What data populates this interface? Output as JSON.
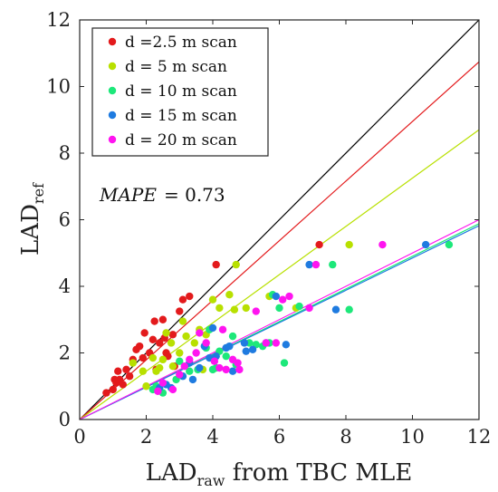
{
  "chart_data": {
    "type": "scatter",
    "xlabel_main": "LAD",
    "xlabel_sub": "raw",
    "xlabel_rest": " from TBC MLE",
    "ylabel_main": "LAD",
    "ylabel_sub": "ref",
    "xlim": [
      0,
      12
    ],
    "ylim": [
      0,
      12
    ],
    "xticks": [
      "0",
      "2",
      "4",
      "6",
      "8",
      "10",
      "12"
    ],
    "yticks": [
      "0",
      "2",
      "4",
      "6",
      "8",
      "10",
      "12"
    ],
    "grid": false,
    "legend_position": "top-left",
    "annotation_label": "MAPE",
    "annotation_value": "= 0.73",
    "reference_line": {
      "slope": 1.0,
      "color": "#000000"
    },
    "series": [
      {
        "name": "d =2.5 m scan",
        "color": "#e31a1c",
        "fit_slope": 0.895,
        "points": [
          [
            0.8,
            0.8
          ],
          [
            1.0,
            0.9
          ],
          [
            1.1,
            1.1
          ],
          [
            1.2,
            1.2
          ],
          [
            1.15,
            1.45
          ],
          [
            1.3,
            1.05
          ],
          [
            1.4,
            1.5
          ],
          [
            1.5,
            1.3
          ],
          [
            1.6,
            1.8
          ],
          [
            1.7,
            2.1
          ],
          [
            1.8,
            2.2
          ],
          [
            1.9,
            1.85
          ],
          [
            1.95,
            2.6
          ],
          [
            2.1,
            2.0
          ],
          [
            2.2,
            2.4
          ],
          [
            2.25,
            2.95
          ],
          [
            2.4,
            2.3
          ],
          [
            2.5,
            3.0
          ],
          [
            2.55,
            2.45
          ],
          [
            2.6,
            2.0
          ],
          [
            2.65,
            1.9
          ],
          [
            2.8,
            2.55
          ],
          [
            2.85,
            1.6
          ],
          [
            3.0,
            3.25
          ],
          [
            3.1,
            3.6
          ],
          [
            3.3,
            3.7
          ],
          [
            4.1,
            4.65
          ],
          [
            7.2,
            5.25
          ],
          [
            2.3,
            1.5
          ],
          [
            1.05,
            1.2
          ]
        ]
      },
      {
        "name": "d = 5 m scan",
        "color": "#b8e000",
        "fit_slope": 0.725,
        "points": [
          [
            1.6,
            1.7
          ],
          [
            1.9,
            1.45
          ],
          [
            2.2,
            1.85
          ],
          [
            2.3,
            1.45
          ],
          [
            2.4,
            1.55
          ],
          [
            2.5,
            1.8
          ],
          [
            2.6,
            2.6
          ],
          [
            2.75,
            2.3
          ],
          [
            2.8,
            1.6
          ],
          [
            3.0,
            2.0
          ],
          [
            3.1,
            2.95
          ],
          [
            3.2,
            2.5
          ],
          [
            3.45,
            2.3
          ],
          [
            3.6,
            2.7
          ],
          [
            3.8,
            2.55
          ],
          [
            4.0,
            3.6
          ],
          [
            4.2,
            3.35
          ],
          [
            4.5,
            3.75
          ],
          [
            4.65,
            3.3
          ],
          [
            4.7,
            4.65
          ],
          [
            5.0,
            3.35
          ],
          [
            5.7,
            3.7
          ],
          [
            6.5,
            3.35
          ],
          [
            8.1,
            5.25
          ],
          [
            3.7,
            1.5
          ],
          [
            2.0,
            1.0
          ]
        ]
      },
      {
        "name": "d = 10 m scan",
        "color": "#1de87a",
        "fit_slope": 0.49,
        "points": [
          [
            2.2,
            0.9
          ],
          [
            2.3,
            1.0
          ],
          [
            2.5,
            0.8
          ],
          [
            2.9,
            1.2
          ],
          [
            3.0,
            1.75
          ],
          [
            3.3,
            1.45
          ],
          [
            3.55,
            1.5
          ],
          [
            3.8,
            2.15
          ],
          [
            3.9,
            2.7
          ],
          [
            4.0,
            1.5
          ],
          [
            4.1,
            1.55
          ],
          [
            4.2,
            2.05
          ],
          [
            4.4,
            1.9
          ],
          [
            4.7,
            1.65
          ],
          [
            5.1,
            2.3
          ],
          [
            5.3,
            2.25
          ],
          [
            5.7,
            2.3
          ],
          [
            5.8,
            3.75
          ],
          [
            6.0,
            3.35
          ],
          [
            6.15,
            1.7
          ],
          [
            6.6,
            3.4
          ],
          [
            7.6,
            4.65
          ],
          [
            8.1,
            3.3
          ],
          [
            11.1,
            5.25
          ],
          [
            4.6,
            2.5
          ],
          [
            5.5,
            2.2
          ]
        ]
      },
      {
        "name": "d = 15 m scan",
        "color": "#1f7be0",
        "fit_slope": 0.485,
        "points": [
          [
            2.4,
            0.95
          ],
          [
            2.6,
            1.05
          ],
          [
            2.75,
            0.95
          ],
          [
            3.1,
            1.3
          ],
          [
            3.3,
            1.7
          ],
          [
            3.6,
            1.55
          ],
          [
            3.75,
            2.2
          ],
          [
            3.9,
            1.85
          ],
          [
            4.0,
            2.75
          ],
          [
            4.1,
            1.9
          ],
          [
            4.4,
            2.15
          ],
          [
            4.5,
            2.2
          ],
          [
            4.6,
            1.45
          ],
          [
            4.95,
            2.3
          ],
          [
            5.2,
            2.1
          ],
          [
            5.6,
            2.3
          ],
          [
            5.9,
            3.7
          ],
          [
            6.2,
            2.25
          ],
          [
            6.9,
            4.65
          ],
          [
            7.7,
            3.3
          ],
          [
            10.4,
            5.25
          ],
          [
            3.4,
            1.2
          ],
          [
            5.0,
            2.05
          ]
        ]
      },
      {
        "name": "d = 20 m scan",
        "color": "#ff14f0",
        "fit_slope": 0.5,
        "points": [
          [
            2.35,
            0.85
          ],
          [
            2.5,
            1.1
          ],
          [
            2.8,
            0.9
          ],
          [
            3.0,
            1.35
          ],
          [
            3.15,
            1.6
          ],
          [
            3.3,
            1.8
          ],
          [
            3.5,
            2.0
          ],
          [
            3.8,
            2.3
          ],
          [
            4.05,
            1.75
          ],
          [
            4.2,
            1.55
          ],
          [
            4.3,
            2.7
          ],
          [
            4.4,
            1.5
          ],
          [
            4.6,
            1.8
          ],
          [
            4.75,
            1.7
          ],
          [
            5.3,
            3.25
          ],
          [
            5.6,
            2.3
          ],
          [
            5.9,
            2.3
          ],
          [
            6.1,
            3.6
          ],
          [
            6.3,
            3.7
          ],
          [
            6.9,
            3.35
          ],
          [
            7.1,
            4.65
          ],
          [
            9.1,
            5.25
          ],
          [
            3.6,
            2.6
          ],
          [
            4.8,
            1.5
          ]
        ]
      }
    ]
  }
}
